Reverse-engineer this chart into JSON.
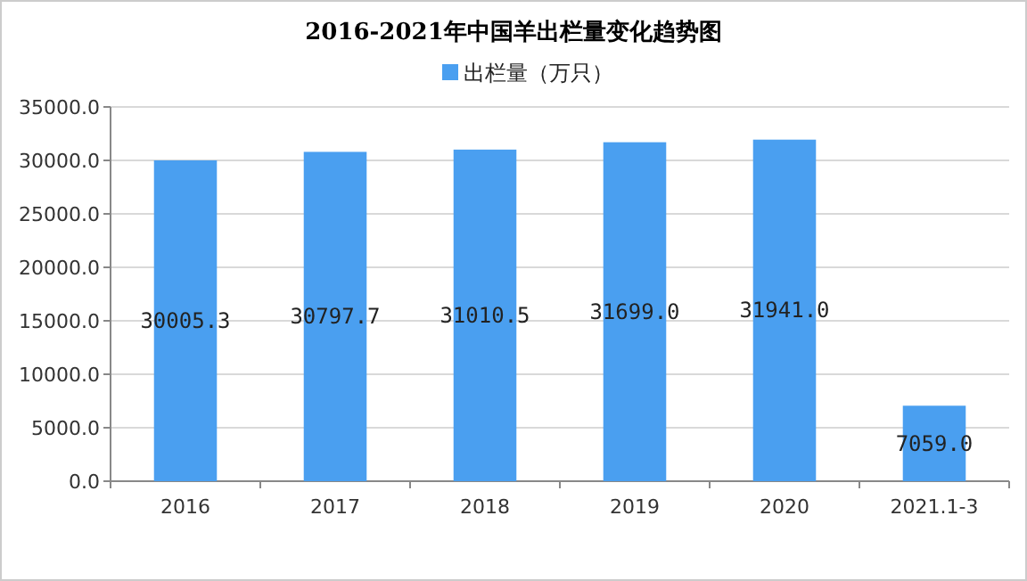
{
  "chart_data": {
    "type": "bar",
    "title": "2016-2021年中国羊出栏量变化趋势图",
    "categories": [
      "2016",
      "2017",
      "2018",
      "2019",
      "2020",
      "2021.1-3"
    ],
    "series": [
      {
        "name": "出栏量（万只）",
        "color": "#4a9ff0",
        "values": [
          30005.3,
          30797.7,
          31010.5,
          31699.0,
          31941.0,
          7059.0
        ],
        "value_labels": [
          "30005.3",
          "30797.7",
          "31010.5",
          "31699.0",
          "31941.0",
          "7059.0"
        ]
      }
    ],
    "ylim": [
      0,
      35000
    ],
    "yticks": [
      {
        "value": 0,
        "label": "0.0"
      },
      {
        "value": 5000,
        "label": "5000.0"
      },
      {
        "value": 10000,
        "label": "10000.0"
      },
      {
        "value": 15000,
        "label": "15000.0"
      },
      {
        "value": 20000,
        "label": "20000.0"
      },
      {
        "value": 25000,
        "label": "25000.0"
      },
      {
        "value": 30000,
        "label": "30000.0"
      },
      {
        "value": 35000,
        "label": "35000.0"
      }
    ],
    "grid": "y",
    "legend": "top"
  }
}
